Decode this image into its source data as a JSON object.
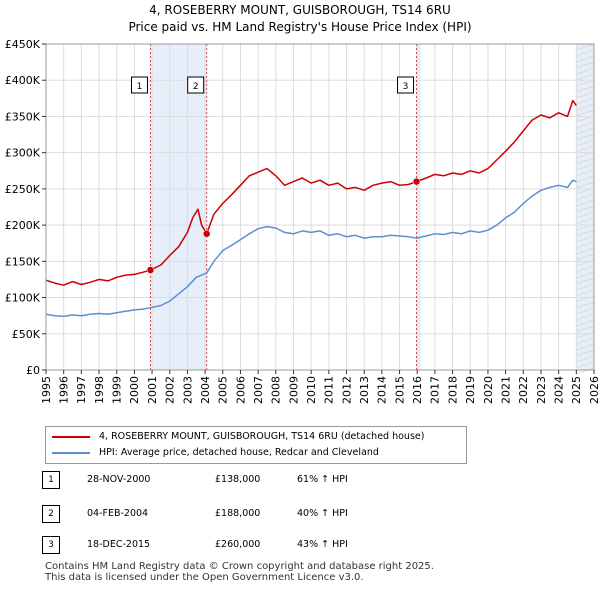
{
  "title_line1": "4, ROSEBERRY MOUNT, GUISBOROUGH, TS14 6RU",
  "title_line2": "Price paid vs. HM Land Registry's House Price Index (HPI)",
  "legend": {
    "property": "4, ROSEBERRY MOUNT, GUISBOROUGH, TS14 6RU (detached house)",
    "hpi": "HPI: Average price, detached house, Redcar and Cleveland"
  },
  "sales": [
    {
      "num": "1",
      "date": "28-NOV-2000",
      "price": "£138,000",
      "hpi": "61% ↑ HPI"
    },
    {
      "num": "2",
      "date": "04-FEB-2004",
      "price": "£188,000",
      "hpi": "40% ↑ HPI"
    },
    {
      "num": "3",
      "date": "18-DEC-2015",
      "price": "£260,000",
      "hpi": "43% ↑ HPI"
    }
  ],
  "footer_line1": "Contains HM Land Registry data © Crown copyright and database right 2025.",
  "footer_line2": "This data is licensed under the Open Government Licence v3.0.",
  "colors": {
    "property": "#cc0000",
    "hpi": "#5b8fd0",
    "shade": "#e6eefa",
    "grid": "#dddddd"
  },
  "chart_data": {
    "type": "line",
    "title": "Price paid vs. HM Land Registry's House Price Index (HPI)",
    "xlim": [
      1995,
      2026
    ],
    "ylim": [
      0,
      450000
    ],
    "x_ticks": [
      1995,
      1996,
      1997,
      1998,
      1999,
      2000,
      2001,
      2002,
      2003,
      2004,
      2005,
      2006,
      2007,
      2008,
      2009,
      2010,
      2011,
      2012,
      2013,
      2014,
      2015,
      2016,
      2017,
      2018,
      2019,
      2020,
      2021,
      2022,
      2023,
      2024,
      2025,
      2026
    ],
    "y_ticks": [
      0,
      50000,
      100000,
      150000,
      200000,
      250000,
      300000,
      350000,
      400000,
      450000
    ],
    "y_tick_labels": [
      "£0",
      "£50K",
      "£100K",
      "£150K",
      "£200K",
      "£250K",
      "£300K",
      "£350K",
      "£400K",
      "£450K"
    ],
    "shaded_ranges": [
      [
        2000.91,
        2004.09
      ],
      [
        2015.96,
        2016.2
      ],
      [
        2025.0,
        2026.0
      ]
    ],
    "markers": [
      {
        "label": "1",
        "x": 2000.91,
        "y": 138000
      },
      {
        "label": "2",
        "x": 2004.09,
        "y": 188000
      },
      {
        "label": "3",
        "x": 2015.96,
        "y": 260000
      }
    ],
    "series": [
      {
        "name": "4, ROSEBERRY MOUNT, GUISBOROUGH, TS14 6RU (detached house)",
        "color": "#cc0000",
        "x": [
          1995,
          1995.5,
          1996,
          1996.5,
          1997,
          1997.5,
          1998,
          1998.5,
          1999,
          1999.5,
          2000,
          2000.5,
          2000.91,
          2001.5,
          2002,
          2002.5,
          2003,
          2003.3,
          2003.6,
          2003.8,
          2004.09,
          2004.5,
          2005,
          2005.5,
          2006,
          2006.5,
          2007,
          2007.5,
          2008,
          2008.5,
          2009,
          2009.5,
          2010,
          2010.5,
          2011,
          2011.5,
          2012,
          2012.5,
          2013,
          2013.5,
          2014,
          2014.5,
          2015,
          2015.5,
          2015.96,
          2016.5,
          2017,
          2017.5,
          2018,
          2018.5,
          2019,
          2019.5,
          2020,
          2020.5,
          2021,
          2021.5,
          2022,
          2022.5,
          2023,
          2023.5,
          2024,
          2024.5,
          2024.8,
          2025
        ],
        "y": [
          124000,
          120000,
          117000,
          122000,
          118000,
          121000,
          125000,
          123000,
          128000,
          131000,
          132000,
          135000,
          138000,
          145000,
          158000,
          170000,
          190000,
          210000,
          222000,
          200000,
          188000,
          215000,
          230000,
          242000,
          255000,
          268000,
          273000,
          278000,
          268000,
          255000,
          260000,
          265000,
          258000,
          262000,
          255000,
          258000,
          250000,
          252000,
          248000,
          255000,
          258000,
          260000,
          255000,
          256000,
          260000,
          265000,
          270000,
          268000,
          272000,
          270000,
          275000,
          272000,
          278000,
          290000,
          302000,
          315000,
          330000,
          345000,
          352000,
          348000,
          355000,
          350000,
          372000,
          365000
        ]
      },
      {
        "name": "HPI: Average price, detached house, Redcar and Cleveland",
        "color": "#5b8fd0",
        "x": [
          1995,
          1995.5,
          1996,
          1996.5,
          1997,
          1997.5,
          1998,
          1998.5,
          1999,
          1999.5,
          2000,
          2000.5,
          2000.91,
          2001.5,
          2002,
          2002.5,
          2003,
          2003.5,
          2004.09,
          2004.5,
          2005,
          2005.5,
          2006,
          2006.5,
          2007,
          2007.5,
          2008,
          2008.5,
          2009,
          2009.5,
          2010,
          2010.5,
          2011,
          2011.5,
          2012,
          2012.5,
          2013,
          2013.5,
          2014,
          2014.5,
          2015,
          2015.5,
          2015.96,
          2016.5,
          2017,
          2017.5,
          2018,
          2018.5,
          2019,
          2019.5,
          2020,
          2020.5,
          2021,
          2021.5,
          2022,
          2022.5,
          2023,
          2023.5,
          2024,
          2024.5,
          2024.8,
          2025
        ],
        "y": [
          77000,
          75000,
          74000,
          76000,
          75000,
          77000,
          78000,
          77000,
          79000,
          81000,
          83000,
          84000,
          86000,
          89000,
          95000,
          105000,
          115000,
          128000,
          134000,
          150000,
          165000,
          172000,
          180000,
          188000,
          195000,
          198000,
          196000,
          190000,
          188000,
          192000,
          190000,
          192000,
          186000,
          188000,
          184000,
          186000,
          182000,
          184000,
          184000,
          186000,
          185000,
          184000,
          182000,
          185000,
          188000,
          187000,
          190000,
          188000,
          192000,
          190000,
          193000,
          200000,
          210000,
          218000,
          230000,
          240000,
          248000,
          252000,
          255000,
          252000,
          262000,
          260000
        ]
      }
    ]
  }
}
